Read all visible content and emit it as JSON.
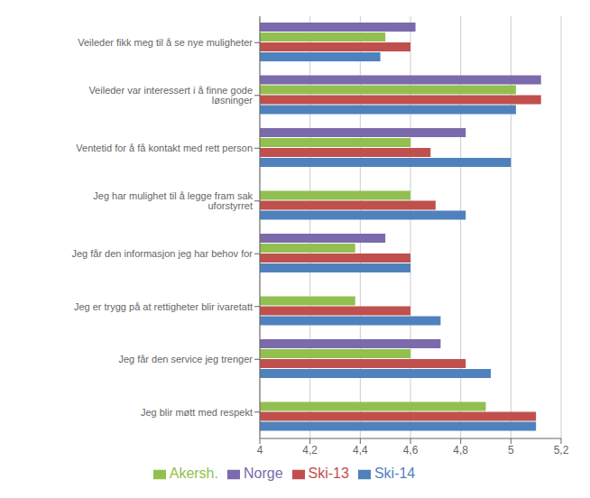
{
  "chart_data": {
    "type": "bar",
    "orientation": "horizontal",
    "categories": [
      "Veileder fikk meg til å se nye muligheter",
      "Veileder var interessert i å finne gode løsninger",
      "Ventetid for å få kontakt med rett person",
      "Jeg har mulighet til å legge fram sak uforstyrret",
      "Jeg får den informasjon jeg har behov for",
      "Jeg er trygg på at rettigheter blir ivaretatt",
      "Jeg får den service jeg trenger",
      "Jeg blir møtt med respekt"
    ],
    "series": [
      {
        "name": "Norge",
        "color": "#7b6aac",
        "values": [
          4.62,
          5.12,
          4.82,
          null,
          4.5,
          null,
          4.72,
          null
        ]
      },
      {
        "name": "Akersh.",
        "color": "#92c050",
        "values": [
          4.5,
          5.02,
          4.6,
          4.6,
          4.38,
          4.38,
          4.6,
          4.9
        ]
      },
      {
        "name": "Ski-13",
        "color": "#c0504d",
        "values": [
          4.6,
          5.12,
          4.68,
          4.7,
          4.6,
          4.6,
          4.82,
          5.1
        ]
      },
      {
        "name": "Ski-14",
        "color": "#4f81bd",
        "values": [
          4.48,
          5.02,
          5.0,
          4.82,
          4.6,
          4.72,
          4.92,
          5.1
        ]
      }
    ],
    "xlim": [
      4.0,
      5.2
    ],
    "xticks": [
      4,
      {
        "value": 4.2,
        "label": "4,2"
      },
      {
        "value": 4.4,
        "label": "4,4"
      },
      {
        "value": 4.6,
        "label": "4,6"
      },
      {
        "value": 4.8,
        "label": "4,8"
      },
      5,
      {
        "value": 5.2,
        "label": "5,2"
      }
    ],
    "grid": true,
    "legend": "bottom"
  }
}
